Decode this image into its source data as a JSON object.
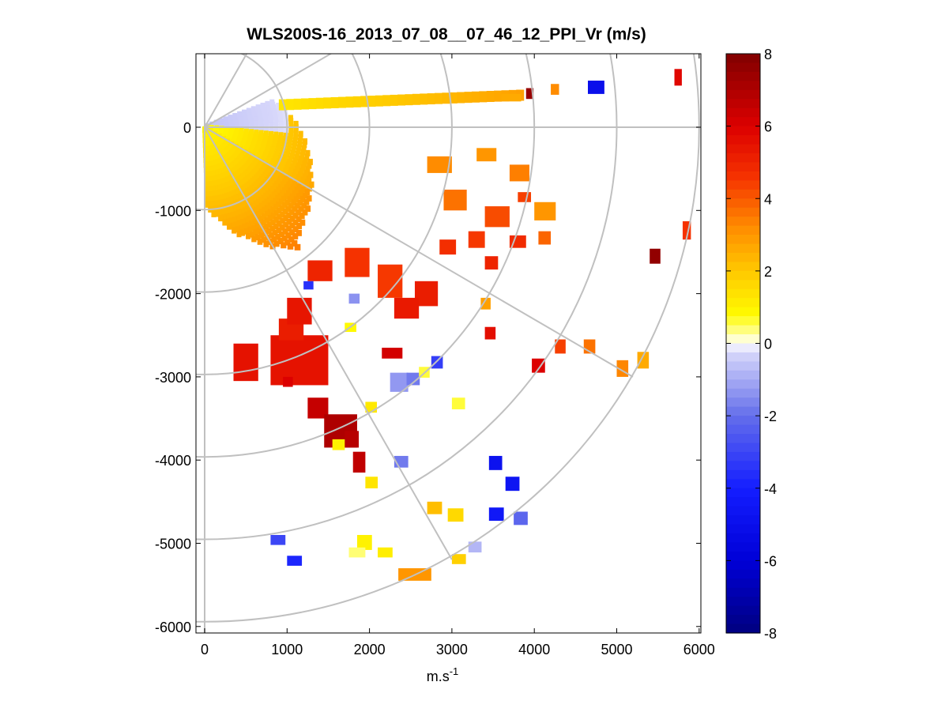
{
  "chart_data": {
    "type": "heatmap",
    "title": "WLS200S-16_2013_07_08__07_46_12_PPI_Vr (m/s)",
    "xlabel": "m.s",
    "xlabel_superscript": "-1",
    "ylabel": "",
    "xlim": [
      -100,
      6000
    ],
    "ylim": [
      -6100,
      850
    ],
    "x_ticks": [
      0,
      1000,
      2000,
      3000,
      4000,
      5000,
      6000
    ],
    "x_tick_labels": [
      "0",
      "1000",
      "2000",
      "3000",
      "4000",
      "5000",
      "6000"
    ],
    "y_ticks": [
      0,
      -1000,
      -2000,
      -3000,
      -4000,
      -5000,
      -6000
    ],
    "y_tick_labels": [
      "0",
      "-1000",
      "-2000",
      "-3000",
      "-4000",
      "-5000",
      "-6000"
    ],
    "colorbar": {
      "label": "Vr (m/s)",
      "range": [
        -8,
        8
      ],
      "ticks": [
        8,
        6,
        4,
        2,
        0,
        -2,
        -4,
        -6,
        -8
      ],
      "tick_labels": [
        "8",
        "6",
        "4",
        "2",
        "0",
        "-2",
        "-4",
        "-6",
        "-8"
      ]
    },
    "polar_grid": {
      "range_rings_m": [
        1000,
        2000,
        3000,
        4000,
        5000,
        6000
      ],
      "spokes_deg_from_north_cw": [
        30,
        60,
        90,
        120,
        150,
        180
      ]
    },
    "sector": {
      "azimuth_start_deg": 70,
      "azimuth_end_deg": 180,
      "inner_max_range_m": 2000,
      "note": "dense near-field returns, yellow near origin grading to orange; faint blue patch near 0 m north-east"
    },
    "patches": [
      {
        "x": 3600,
        "y": 400,
        "w": 240,
        "h": 90,
        "v": 2.6
      },
      {
        "x": 3900,
        "y": 470,
        "w": 90,
        "h": 130,
        "v": 7.5
      },
      {
        "x": 4200,
        "y": 520,
        "w": 100,
        "h": 130,
        "v": 3.2
      },
      {
        "x": 4650,
        "y": 560,
        "w": 200,
        "h": 160,
        "v": -5.0
      },
      {
        "x": 5700,
        "y": 700,
        "w": 90,
        "h": 200,
        "v": 5.8
      },
      {
        "x": 2700,
        "y": -350,
        "w": 300,
        "h": 200,
        "v": 3.2
      },
      {
        "x": 3300,
        "y": -250,
        "w": 240,
        "h": 160,
        "v": 3.0
      },
      {
        "x": 3700,
        "y": -450,
        "w": 240,
        "h": 200,
        "v": 3.4
      },
      {
        "x": 2900,
        "y": -750,
        "w": 280,
        "h": 250,
        "v": 3.6
      },
      {
        "x": 3400,
        "y": -950,
        "w": 300,
        "h": 250,
        "v": 4.2
      },
      {
        "x": 4000,
        "y": -900,
        "w": 260,
        "h": 220,
        "v": 3.0
      },
      {
        "x": 3800,
        "y": -780,
        "w": 160,
        "h": 120,
        "v": 4.4
      },
      {
        "x": 3200,
        "y": -1250,
        "w": 200,
        "h": 200,
        "v": 4.5
      },
      {
        "x": 2850,
        "y": -1350,
        "w": 200,
        "h": 180,
        "v": 4.7
      },
      {
        "x": 3700,
        "y": -1300,
        "w": 200,
        "h": 150,
        "v": 4.8
      },
      {
        "x": 4050,
        "y": -1250,
        "w": 150,
        "h": 160,
        "v": 3.8
      },
      {
        "x": 3400,
        "y": -1550,
        "w": 160,
        "h": 160,
        "v": 5.0
      },
      {
        "x": 5400,
        "y": -1460,
        "w": 130,
        "h": 180,
        "v": 7.6
      },
      {
        "x": 5800,
        "y": -1130,
        "w": 100,
        "h": 220,
        "v": 4.6
      },
      {
        "x": 1700,
        "y": -1450,
        "w": 300,
        "h": 350,
        "v": 4.6
      },
      {
        "x": 2100,
        "y": -1650,
        "w": 300,
        "h": 400,
        "v": 4.5
      },
      {
        "x": 1250,
        "y": -1600,
        "w": 300,
        "h": 250,
        "v": 5.0
      },
      {
        "x": 2550,
        "y": -1850,
        "w": 280,
        "h": 300,
        "v": 5.2
      },
      {
        "x": 2300,
        "y": -2050,
        "w": 300,
        "h": 250,
        "v": 5.3
      },
      {
        "x": 1200,
        "y": -1850,
        "w": 120,
        "h": 100,
        "v": -3.5
      },
      {
        "x": 1750,
        "y": -2000,
        "w": 130,
        "h": 120,
        "v": -1.4
      },
      {
        "x": 1700,
        "y": -2350,
        "w": 140,
        "h": 110,
        "v": 0.8
      },
      {
        "x": 3350,
        "y": -2050,
        "w": 120,
        "h": 140,
        "v": 2.8
      },
      {
        "x": 3400,
        "y": -2400,
        "w": 130,
        "h": 150,
        "v": 5.6
      },
      {
        "x": 800,
        "y": -2500,
        "w": 700,
        "h": 600,
        "v": 5.5
      },
      {
        "x": 900,
        "y": -2300,
        "w": 300,
        "h": 260,
        "v": 5.2
      },
      {
        "x": 350,
        "y": -2600,
        "w": 300,
        "h": 450,
        "v": 5.5
      },
      {
        "x": 1000,
        "y": -2050,
        "w": 300,
        "h": 320,
        "v": 5.4
      },
      {
        "x": 2150,
        "y": -2650,
        "w": 250,
        "h": 130,
        "v": 6.2
      },
      {
        "x": 2750,
        "y": -2750,
        "w": 140,
        "h": 150,
        "v": -3.2
      },
      {
        "x": 2250,
        "y": -2950,
        "w": 220,
        "h": 230,
        "v": -1.3
      },
      {
        "x": 2450,
        "y": -2950,
        "w": 160,
        "h": 150,
        "v": -1.8
      },
      {
        "x": 2600,
        "y": -2880,
        "w": 130,
        "h": 130,
        "v": 0.6
      },
      {
        "x": 3970,
        "y": -2780,
        "w": 160,
        "h": 170,
        "v": 6.0
      },
      {
        "x": 4250,
        "y": -2550,
        "w": 130,
        "h": 170,
        "v": 4.4
      },
      {
        "x": 4600,
        "y": -2550,
        "w": 140,
        "h": 170,
        "v": 3.6
      },
      {
        "x": 5000,
        "y": -2800,
        "w": 140,
        "h": 200,
        "v": 3.3
      },
      {
        "x": 5250,
        "y": -2700,
        "w": 140,
        "h": 200,
        "v": 2.6
      },
      {
        "x": 950,
        "y": -3000,
        "w": 120,
        "h": 120,
        "v": 6.0
      },
      {
        "x": 1250,
        "y": -3250,
        "w": 250,
        "h": 250,
        "v": 6.5
      },
      {
        "x": 1450,
        "y": -3450,
        "w": 400,
        "h": 400,
        "v": 7.0
      },
      {
        "x": 1700,
        "y": -3650,
        "w": 170,
        "h": 200,
        "v": 6.8
      },
      {
        "x": 1800,
        "y": -3900,
        "w": 150,
        "h": 250,
        "v": 6.6
      },
      {
        "x": 1550,
        "y": -3750,
        "w": 150,
        "h": 130,
        "v": 1.0
      },
      {
        "x": 1950,
        "y": -3300,
        "w": 140,
        "h": 130,
        "v": 1.2
      },
      {
        "x": 3000,
        "y": -3250,
        "w": 160,
        "h": 140,
        "v": 0.6
      },
      {
        "x": 2300,
        "y": -3950,
        "w": 170,
        "h": 140,
        "v": -1.8
      },
      {
        "x": 3450,
        "y": -3950,
        "w": 160,
        "h": 170,
        "v": -4.8
      },
      {
        "x": 3650,
        "y": -4200,
        "w": 170,
        "h": 170,
        "v": -4.6
      },
      {
        "x": 1950,
        "y": -4200,
        "w": 150,
        "h": 140,
        "v": 1.3
      },
      {
        "x": 2700,
        "y": -4500,
        "w": 180,
        "h": 150,
        "v": 2.2
      },
      {
        "x": 2950,
        "y": -4580,
        "w": 190,
        "h": 160,
        "v": 1.6
      },
      {
        "x": 3450,
        "y": -4570,
        "w": 180,
        "h": 160,
        "v": -4.4
      },
      {
        "x": 3750,
        "y": -4620,
        "w": 170,
        "h": 160,
        "v": -2.2
      },
      {
        "x": 800,
        "y": -4900,
        "w": 180,
        "h": 120,
        "v": -3.0
      },
      {
        "x": 1000,
        "y": -5150,
        "w": 180,
        "h": 120,
        "v": -3.8
      },
      {
        "x": 1850,
        "y": -4900,
        "w": 180,
        "h": 180,
        "v": 1.0
      },
      {
        "x": 1750,
        "y": -5050,
        "w": 200,
        "h": 120,
        "v": 0.4
      },
      {
        "x": 2100,
        "y": -5050,
        "w": 180,
        "h": 120,
        "v": 1.1
      },
      {
        "x": 2350,
        "y": -5300,
        "w": 400,
        "h": 150,
        "v": 3.0
      },
      {
        "x": 3200,
        "y": -4980,
        "w": 160,
        "h": 130,
        "v": -0.8
      },
      {
        "x": 3000,
        "y": -5130,
        "w": 170,
        "h": 120,
        "v": 1.8
      }
    ]
  }
}
